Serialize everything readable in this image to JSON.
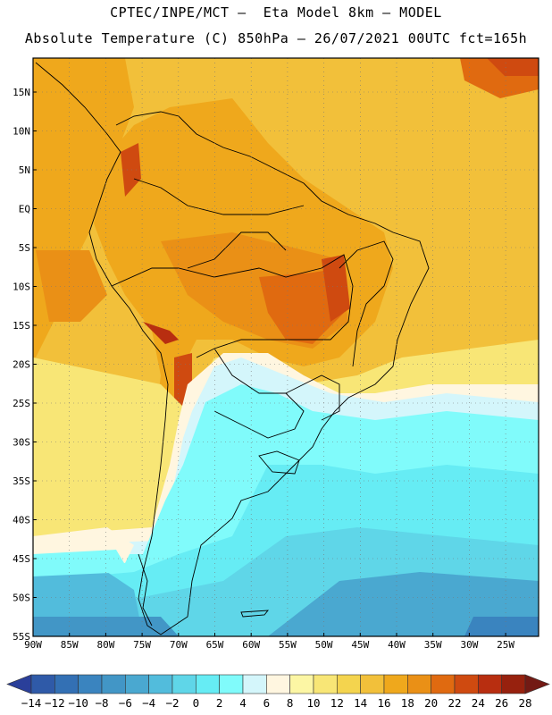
{
  "header": {
    "line1": "CPTEC/INPE/MCT –  Eta Model 8km – MODEL",
    "line2": "Absolute Temperature (C) 850hPa – 26/07/2021 00UTC fct=165h"
  },
  "map": {
    "lat_labels": [
      "15N",
      "10N",
      "5N",
      "EQ",
      "5S",
      "10S",
      "15S",
      "20S",
      "25S",
      "30S",
      "35S",
      "40S",
      "45S",
      "50S",
      "55S"
    ],
    "lon_labels": [
      "90W",
      "85W",
      "80W",
      "75W",
      "70W",
      "65W",
      "60W",
      "55W",
      "50W",
      "45W",
      "40W",
      "35W",
      "30W",
      "25W"
    ],
    "lat_values": [
      15,
      10,
      5,
      0,
      -5,
      -10,
      -15,
      -20,
      -25,
      -30,
      -35,
      -40,
      -45,
      -50,
      -55
    ],
    "lon_values": [
      -90,
      -85,
      -80,
      -75,
      -70,
      -65,
      -60,
      -55,
      -50,
      -45,
      -40,
      -35,
      -30,
      -25
    ]
  },
  "colorbar": {
    "labels": [
      "-14",
      "-12",
      "-10",
      "-8",
      "-6",
      "-4",
      "-2",
      "0",
      "2",
      "4",
      "6",
      "8",
      "10",
      "12",
      "14",
      "16",
      "18",
      "20",
      "22",
      "24",
      "26",
      "28"
    ],
    "colors": [
      "#2a3f9a",
      "#2f5aa8",
      "#3370b4",
      "#3a84bf",
      "#4296c6",
      "#4aa8d0",
      "#52bcdc",
      "#5fd6e8",
      "#66ecf4",
      "#80fbfb",
      "#d4f6fb",
      "#fff6e0",
      "#fcf6a4",
      "#f8e676",
      "#f4d44e",
      "#f2c03a",
      "#efa81c",
      "#ea9016",
      "#e06a10",
      "#cf4a10",
      "#b82e10",
      "#97210e",
      "#731a14"
    ]
  }
}
